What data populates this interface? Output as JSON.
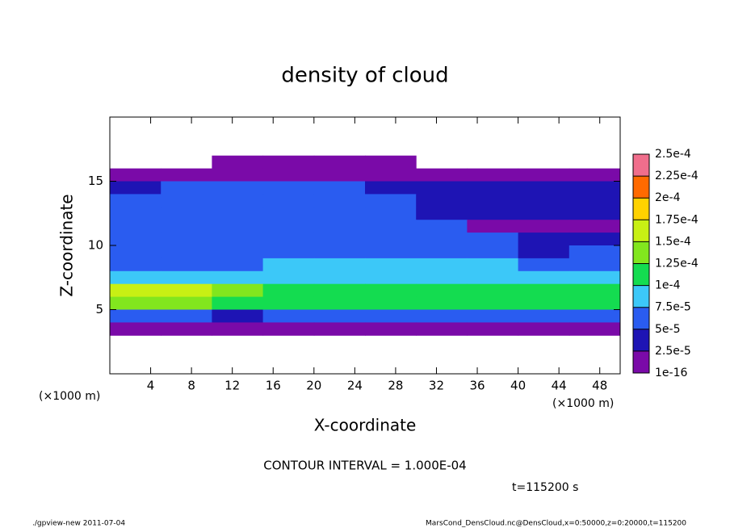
{
  "chart_data": {
    "type": "contour",
    "title": "density of cloud",
    "xlabel": "X-coordinate",
    "ylabel": "Z-coordinate",
    "xunit": "(×1000 m)",
    "xunit2": "(×1000 m)",
    "xlim": [
      0,
      50
    ],
    "ylim": [
      0,
      20
    ],
    "xticks": [
      4,
      8,
      12,
      16,
      20,
      24,
      28,
      32,
      36,
      40,
      44,
      48
    ],
    "yticks": [
      5,
      10,
      15
    ],
    "x": [
      0,
      5,
      10,
      15,
      20,
      25,
      30,
      35,
      40,
      45
    ],
    "x_step": 5,
    "z": [
      16,
      15,
      14,
      13,
      12,
      11,
      10,
      9,
      8,
      7,
      6,
      5,
      4,
      3
    ],
    "z_step": 1,
    "field": [
      [
        null,
        null,
        1e-05,
        1e-05,
        1e-05,
        1e-05,
        null,
        null,
        null,
        null
      ],
      [
        1e-05,
        1e-05,
        1e-05,
        1e-05,
        1e-05,
        1e-05,
        1e-05,
        1e-05,
        1e-05,
        1e-05
      ],
      [
        4e-05,
        5e-05,
        6e-05,
        6e-05,
        6e-05,
        4e-05,
        3e-05,
        3e-05,
        3e-05,
        3e-05
      ],
      [
        5e-05,
        6e-05,
        7e-05,
        7e-05,
        7e-05,
        6e-05,
        3e-05,
        3e-05,
        3e-05,
        3e-05
      ],
      [
        6e-05,
        6e-05,
        7e-05,
        7e-05,
        7e-05,
        6e-05,
        4e-05,
        3e-05,
        3e-05,
        3e-05
      ],
      [
        6e-05,
        6e-05,
        7e-05,
        7e-05,
        7e-05,
        7e-05,
        6e-05,
        2e-05,
        2e-05,
        2e-05
      ],
      [
        6e-05,
        7e-05,
        7e-05,
        7e-05,
        7e-05,
        7e-05,
        6e-05,
        5e-05,
        3e-05,
        4e-05
      ],
      [
        6e-05,
        7e-05,
        7e-05,
        7e-05,
        7e-05,
        7e-05,
        7e-05,
        6e-05,
        4e-05,
        5e-05
      ],
      [
        7e-05,
        7e-05,
        7e-05,
        8e-05,
        8e-05,
        8e-05,
        8e-05,
        8e-05,
        7e-05,
        7e-05
      ],
      [
        9e-05,
        9e-05,
        9e-05,
        9e-05,
        9e-05,
        9e-05,
        9e-05,
        9e-05,
        9e-05,
        9e-05
      ],
      [
        0.00017,
        0.00016,
        0.00013,
        0.00012,
        0.00012,
        0.00012,
        0.00012,
        0.00012,
        0.00012,
        0.00012
      ],
      [
        0.00013,
        0.00013,
        0.00011,
        0.00011,
        0.00011,
        0.00011,
        0.00011,
        0.00011,
        0.00012,
        0.00011
      ],
      [
        5e-05,
        5e-05,
        3e-05,
        5e-05,
        6e-05,
        6e-05,
        6e-05,
        5e-05,
        5e-05,
        5e-05
      ],
      [
        1e-05,
        1e-05,
        1e-05,
        1e-05,
        1e-05,
        1e-05,
        1e-05,
        1e-05,
        1e-05,
        1e-05
      ]
    ],
    "levels": [
      1e-16,
      {
        "value": 2.5e-05,
        "label": "2.5e-5"
      },
      {
        "value": 5e-05,
        "label": "5e-5"
      },
      {
        "value": 7.5e-05,
        "label": "7.5e-5"
      },
      {
        "value": 0.0001,
        "label": "1e-4"
      },
      {
        "value": 0.000125,
        "label": "1.25e-4"
      },
      {
        "value": 0.00015,
        "label": "1.5e-4"
      },
      {
        "value": 0.000175,
        "label": "1.75e-4"
      },
      {
        "value": 0.0002,
        "label": "2e-4"
      },
      {
        "value": 0.000225,
        "label": "2.25e-4"
      },
      {
        "value": 0.00025,
        "label": "2.5e-4"
      }
    ],
    "colors": [
      "#7a0aa8",
      "#1e14b4",
      "#2a5cf0",
      "#3cc8f8",
      "#14dc50",
      "#82e61e",
      "#c8f014",
      "#ffd200",
      "#ff6a00",
      "#f06e8c"
    ],
    "contour_note": "CONTOUR INTERVAL = 1.000E-04",
    "time_label": "t=115200 s",
    "footer_left": "./gpview-new  2011-07-04",
    "footer_right": "MarsCond_DensCloud.nc@DensCloud,x=0:50000,z=0:20000,t=115200"
  }
}
